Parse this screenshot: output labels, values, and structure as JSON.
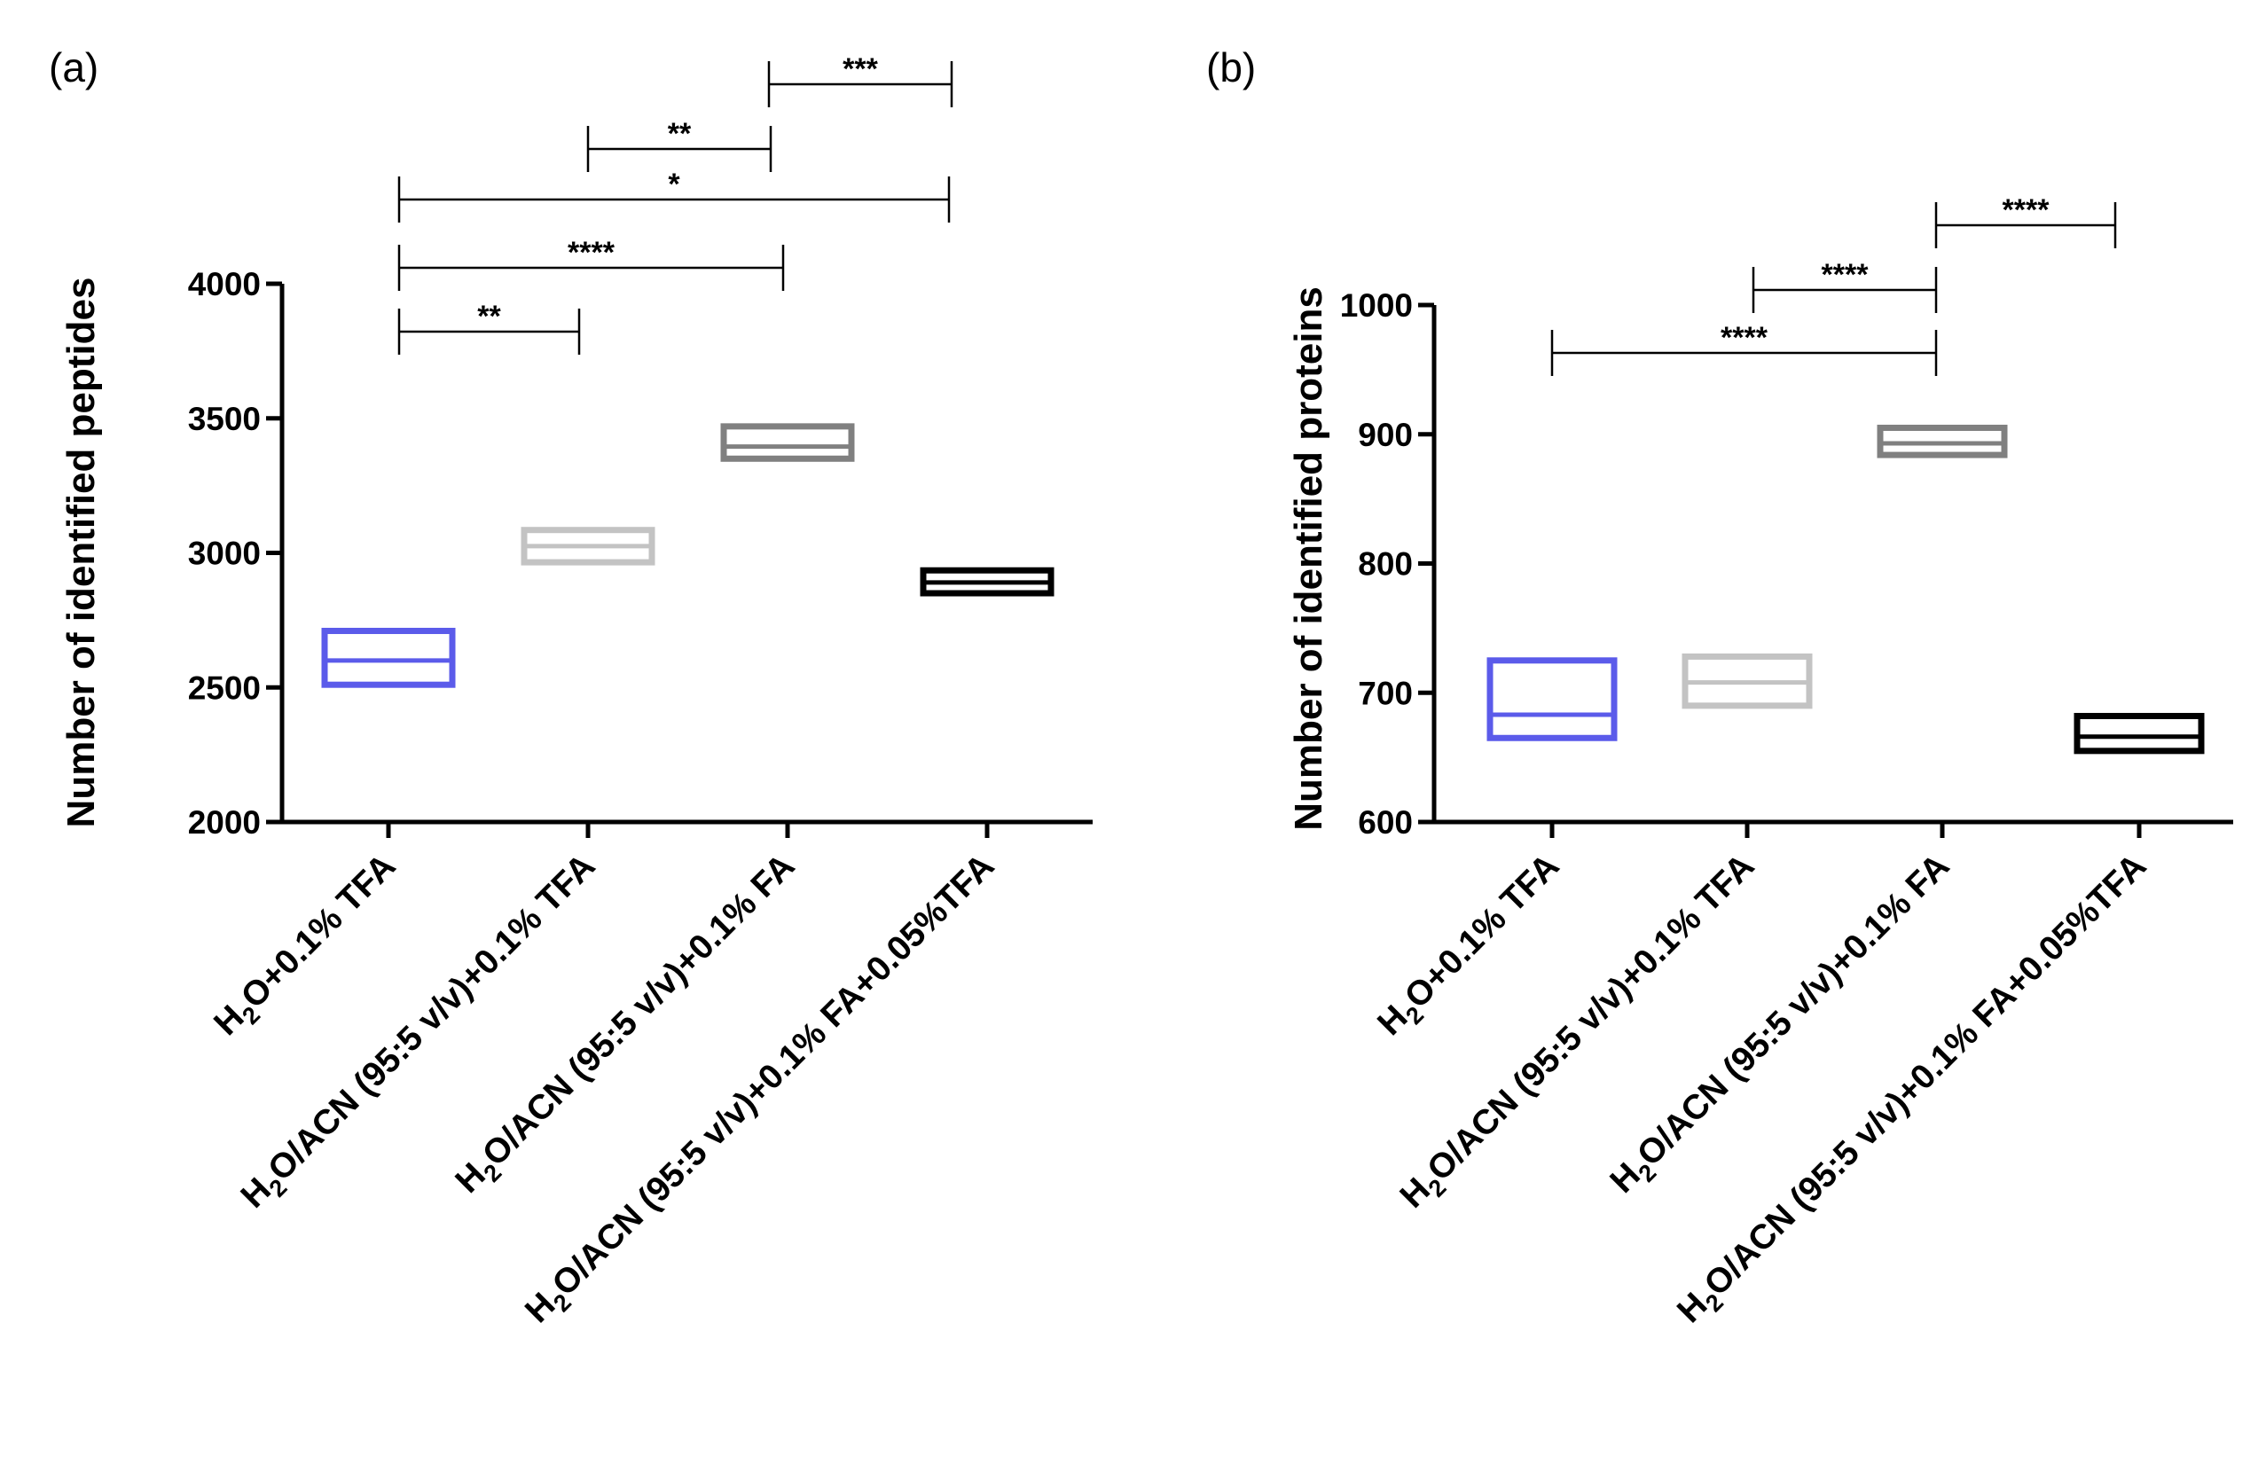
{
  "chart_data": [
    {
      "panel": "(a)",
      "type": "floating-bar",
      "ylabel": "Number of identified peptides",
      "ylim": [
        2000,
        4000
      ],
      "yticks": [
        2000,
        2500,
        3000,
        3500,
        4000
      ],
      "categories": [
        [
          "H",
          "2",
          "O+0.1% TFA"
        ],
        [
          "H",
          "2",
          "O/ACN (95:5 v/v)+0.1% TFA"
        ],
        [
          "H",
          "2",
          "O/ACN (95:5 v/v)+0.1% FA"
        ],
        [
          "H",
          "2",
          "O/ACN (95:5 v/v)+0.1% FA+0.05%TFA"
        ]
      ],
      "boxes": [
        {
          "min": 2510,
          "mean": 2600,
          "max": 2710,
          "color": "#5b5bea"
        },
        {
          "min": 2965,
          "mean": 3025,
          "max": 3085,
          "color": "#c3c3c3"
        },
        {
          "min": 3350,
          "mean": 3395,
          "max": 3470,
          "color": "#808080"
        },
        {
          "min": 2850,
          "mean": 2890,
          "max": 2935,
          "color": "#000000"
        }
      ],
      "significance": [
        {
          "from": 0,
          "to": 1,
          "label": "**"
        },
        {
          "from": 0,
          "to": 2,
          "label": "****"
        },
        {
          "from": 0,
          "to": 3,
          "label": "*"
        },
        {
          "from": 1,
          "to": 2,
          "label": "**"
        },
        {
          "from": 2,
          "to": 3,
          "label": "***"
        }
      ]
    },
    {
      "panel": "(b)",
      "type": "floating-bar",
      "ylabel": "Number of identified proteins",
      "ylim": [
        600,
        1000
      ],
      "yticks": [
        600,
        700,
        800,
        900,
        1000
      ],
      "categories": [
        [
          "H",
          "2",
          "O+0.1% TFA"
        ],
        [
          "H",
          "2",
          "O/ACN (95:5 v/v)+0.1% TFA"
        ],
        [
          "H",
          "2",
          "O/ACN (95:5 v/v)+0.1% FA"
        ],
        [
          "H",
          "2",
          "O/ACN (95:5 v/v)+0.1% FA+0.05%TFA"
        ]
      ],
      "boxes": [
        {
          "min": 665,
          "mean": 683,
          "max": 725,
          "color": "#5b5bea"
        },
        {
          "min": 690,
          "mean": 708,
          "max": 728,
          "color": "#c3c3c3"
        },
        {
          "min": 884,
          "mean": 893,
          "max": 905,
          "color": "#808080"
        },
        {
          "min": 655,
          "mean": 666,
          "max": 682,
          "color": "#000000"
        }
      ],
      "significance": [
        {
          "from": 0,
          "to": 2,
          "label": "****"
        },
        {
          "from": 1,
          "to": 2,
          "label": "****"
        },
        {
          "from": 2,
          "to": 3,
          "label": "****"
        }
      ]
    }
  ]
}
